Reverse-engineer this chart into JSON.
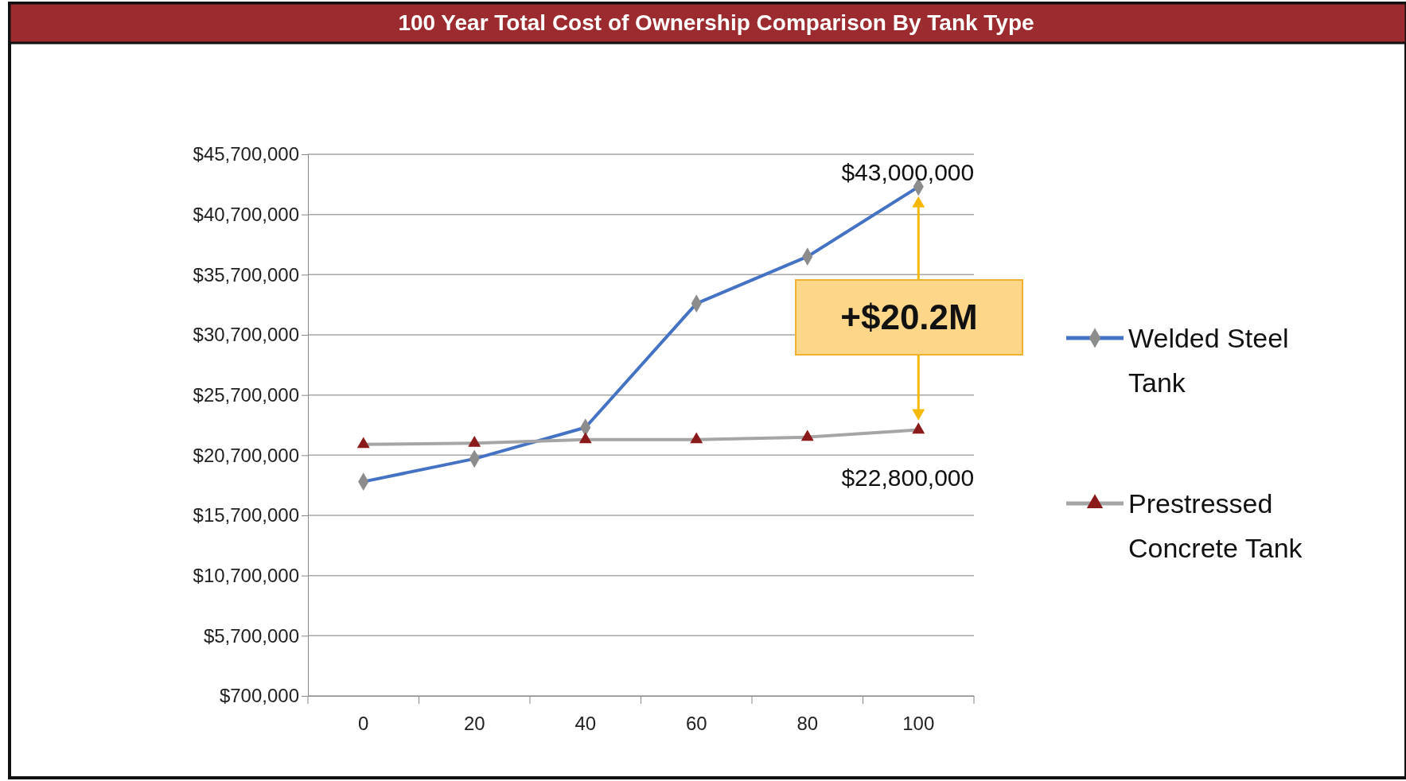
{
  "chart_data": {
    "type": "line",
    "title": "100 Year Total Cost of Ownership Comparison By Tank Type",
    "categories": [
      "0",
      "20",
      "40",
      "60",
      "80",
      "100"
    ],
    "series": [
      {
        "name": "Welded Steel Tank",
        "color": "#4472c4",
        "marker": "diamond",
        "values": [
          18500000,
          20400000,
          23000000,
          33300000,
          37200000,
          43000000
        ]
      },
      {
        "name": "Prestressed Concrete Tank",
        "color": "#a5a5a5",
        "marker": "triangle",
        "values": [
          21600000,
          21700000,
          22000000,
          22000000,
          22200000,
          22800000
        ]
      }
    ],
    "ylim": [
      700000,
      45700000
    ],
    "yticks": [
      {
        "value": 700000,
        "label": "$700,000"
      },
      {
        "value": 5700000,
        "label": "$5,700,000"
      },
      {
        "value": 10700000,
        "label": "$10,700,000"
      },
      {
        "value": 15700000,
        "label": "$15,700,000"
      },
      {
        "value": 20700000,
        "label": "$20,700,000"
      },
      {
        "value": 25700000,
        "label": "$25,700,000"
      },
      {
        "value": 30700000,
        "label": "$30,700,000"
      },
      {
        "value": 35700000,
        "label": "$35,700,000"
      },
      {
        "value": 40700000,
        "label": "$40,700,000"
      },
      {
        "value": 45700000,
        "label": "$45,700,000"
      }
    ],
    "grid": "y",
    "legend": "right",
    "annotations": [
      {
        "text": "$43,000,000",
        "x": "100",
        "y": 43000000
      },
      {
        "text": "$22,800,000",
        "x": "100",
        "y": 22800000
      },
      "+$20.2M"
    ]
  }
}
